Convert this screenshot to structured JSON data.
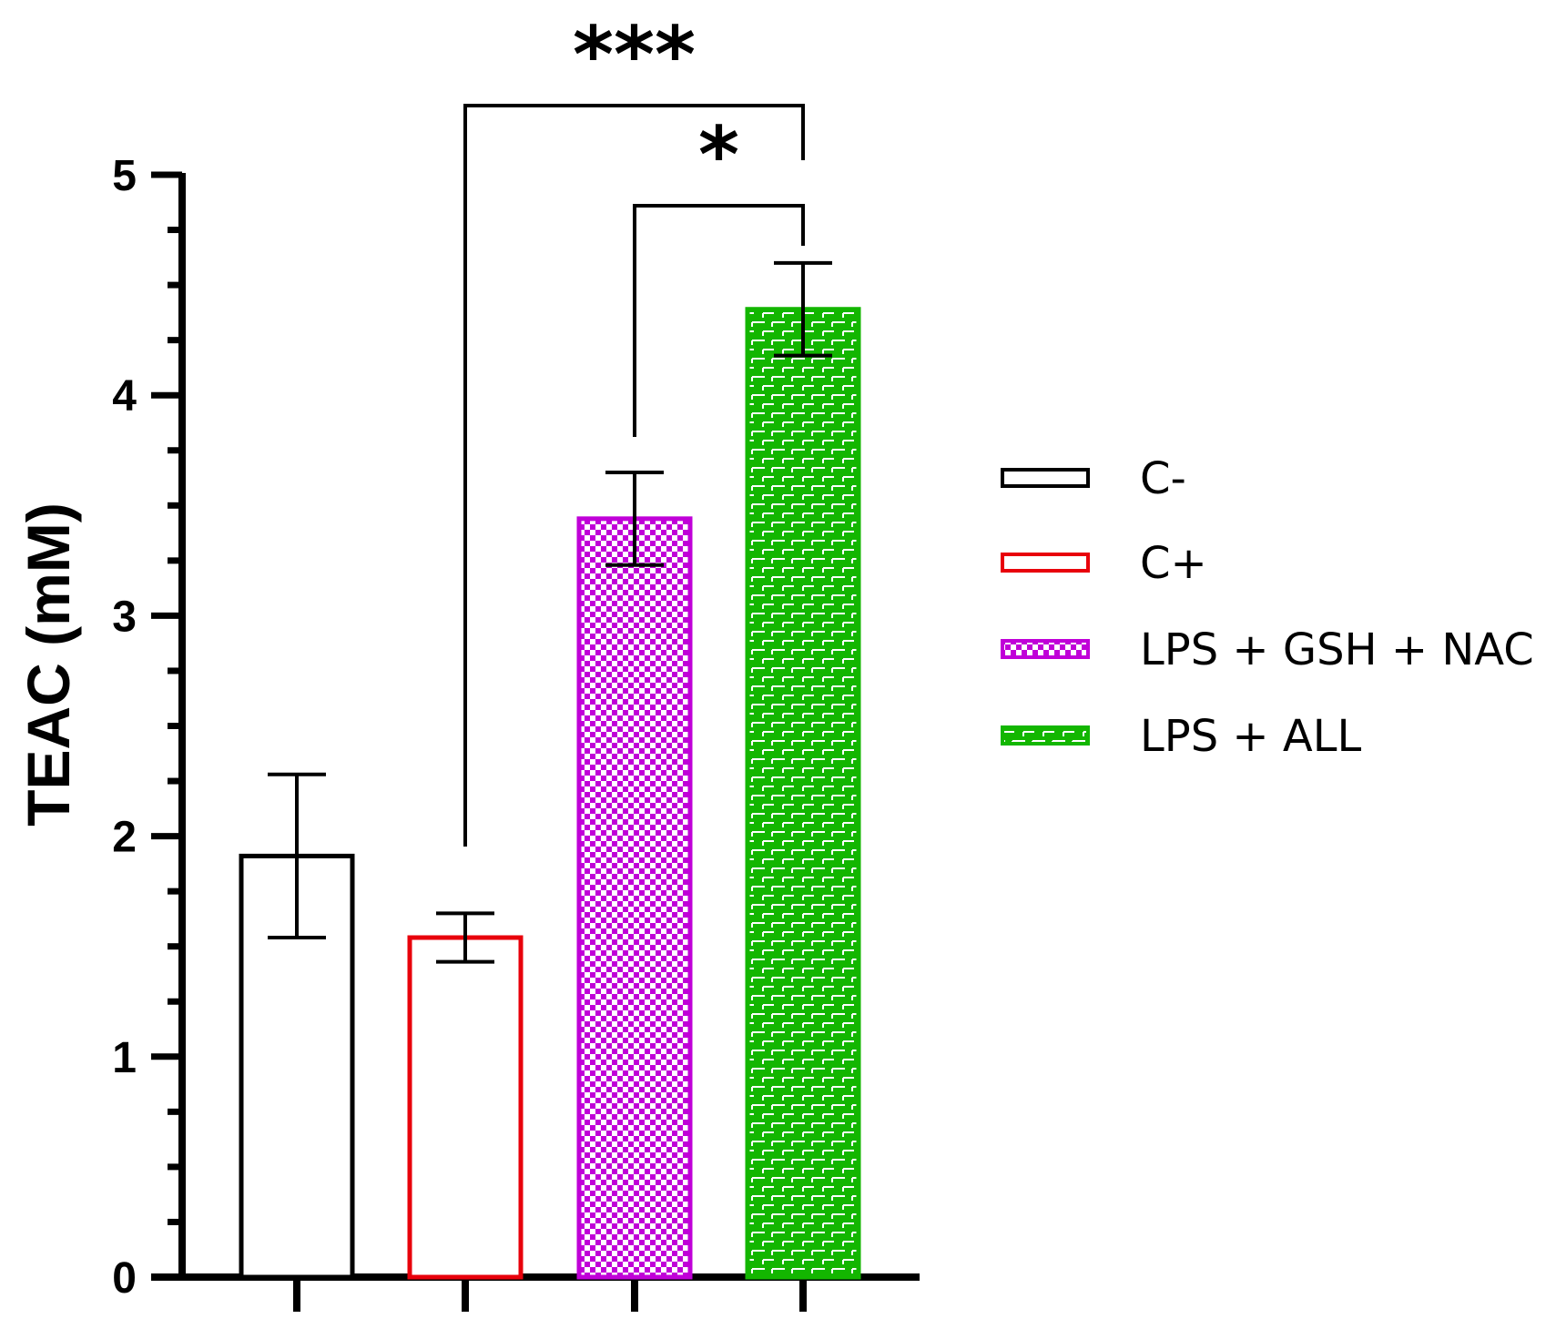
{
  "chart_data": {
    "type": "bar",
    "title": "",
    "xlabel": "",
    "ylabel": "TEAC (mM)",
    "ylim": [
      0,
      5
    ],
    "yticks": [
      "0",
      "1",
      "2",
      "3",
      "4",
      "5"
    ],
    "grid": false,
    "legend_position": "right",
    "categories": [
      "C-",
      "C+",
      "LPS + GSH + NAC",
      "LPS + ALL"
    ],
    "values": [
      1.91,
      1.54,
      3.44,
      4.39
    ],
    "errors": [
      0.37,
      0.11,
      0.21,
      0.21
    ],
    "colors": [
      "#000000",
      "#e8000b",
      "#c000d8",
      "#13b600"
    ],
    "fills": [
      "none",
      "none",
      "checker",
      "brick"
    ],
    "significance": [
      {
        "from": 1,
        "to": 3,
        "label": "***"
      },
      {
        "from": 2,
        "to": 3,
        "label": "*"
      }
    ]
  }
}
